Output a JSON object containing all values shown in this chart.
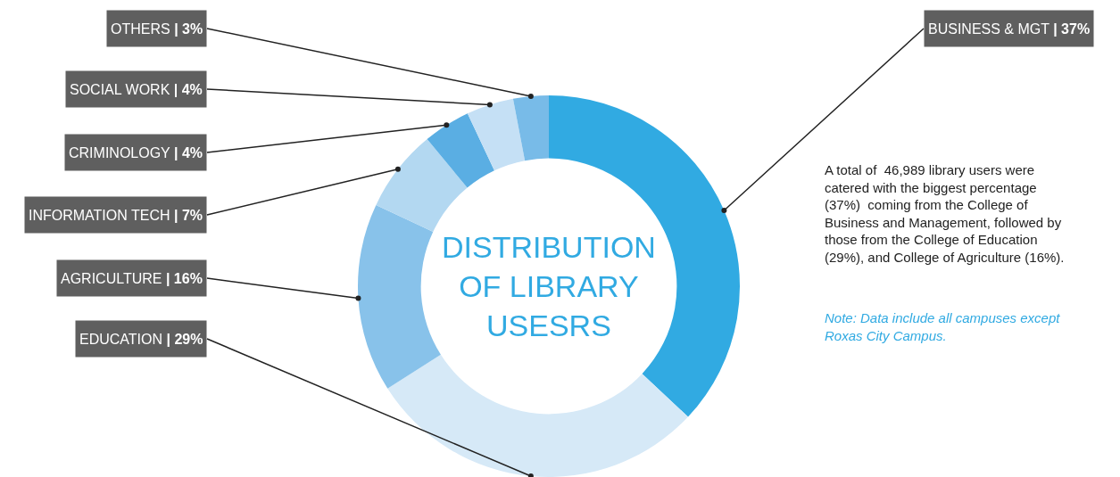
{
  "chart_data": {
    "type": "donut",
    "title": "DISTRIBUTION OF LIBRARY USESRS",
    "categories": [
      "BUSINESS & MGT",
      "EDUCATION",
      "AGRICULTURE",
      "INFORMATION TECH",
      "CRIMINOLOGY",
      "SOCIAL WORK",
      "OTHERS"
    ],
    "values": [
      37,
      29,
      16,
      7,
      4,
      4,
      3
    ],
    "value_labels": [
      "| 37%",
      "| 29%",
      "| 16%",
      "| 7%",
      "| 4%",
      "| 4%",
      "| 3%"
    ],
    "colors": [
      "#31aae2",
      "#d6e9f7",
      "#88c2ea",
      "#b3d8f1",
      "#5aaee3",
      "#c5e0f5",
      "#78bbe8"
    ],
    "annotations": [
      "A total of  46,989 library users were catered with the biggest percentage (37%)  coming from the College of Business and Management, followed by those from the College of Education (29%), and College of Agriculture (16%).",
      "Note: Data include all campuses except Roxas City Campus."
    ],
    "legend": false
  }
}
